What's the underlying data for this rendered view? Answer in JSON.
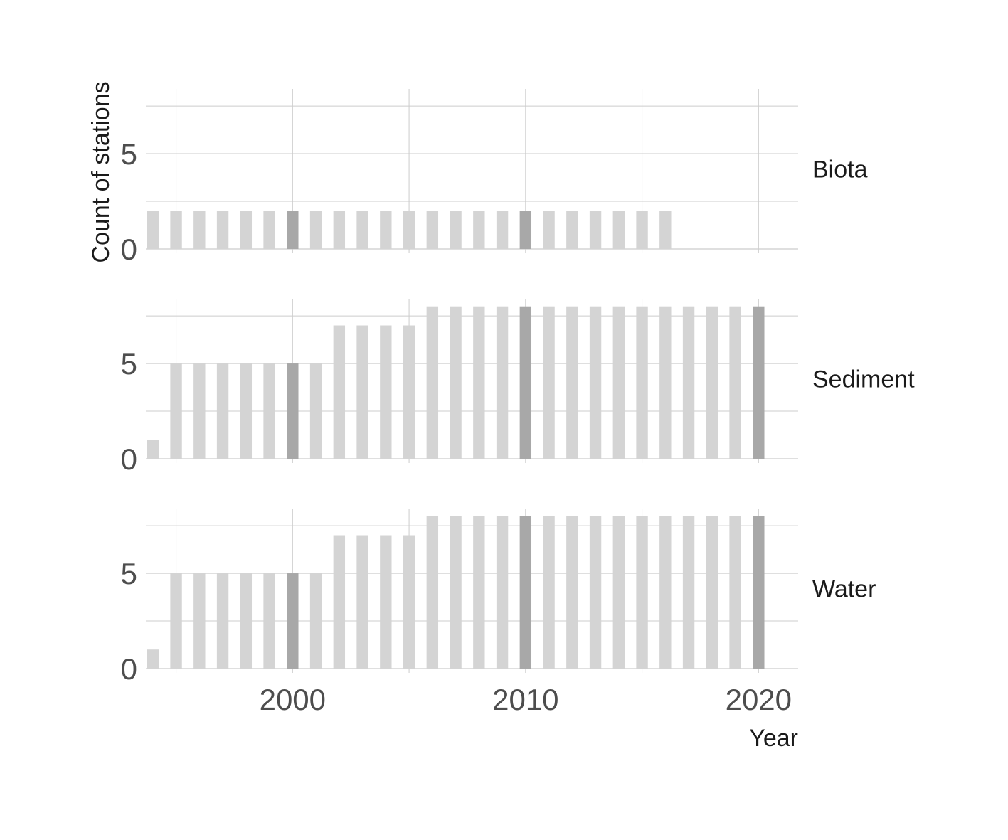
{
  "chart_data": {
    "type": "bar",
    "xlabel": "Year",
    "ylabel": "Count of stations",
    "x_ticks": [
      2000,
      2010,
      2020
    ],
    "y_ticks": [
      0,
      5
    ],
    "xlim": [
      1993.7,
      2021.7
    ],
    "ylim": [
      0,
      8.4
    ],
    "grid": true,
    "colors": {
      "bar": "#d4d4d4",
      "highlight_bar": "#a8a8a8",
      "grid": "#cccccc"
    },
    "highlight_years": [
      2000,
      2010,
      2020
    ],
    "panels": [
      {
        "name": "Biota",
        "x": [
          1994,
          1995,
          1996,
          1997,
          1998,
          1999,
          2000,
          2001,
          2002,
          2003,
          2004,
          2005,
          2006,
          2007,
          2008,
          2009,
          2010,
          2011,
          2012,
          2013,
          2014,
          2015,
          2016
        ],
        "values": [
          2,
          2,
          2,
          2,
          2,
          2,
          2,
          2,
          2,
          2,
          2,
          2,
          2,
          2,
          2,
          2,
          2,
          2,
          2,
          2,
          2,
          2,
          2
        ]
      },
      {
        "name": "Sediment",
        "x": [
          1994,
          1995,
          1996,
          1997,
          1998,
          1999,
          2000,
          2001,
          2002,
          2003,
          2004,
          2005,
          2006,
          2007,
          2008,
          2009,
          2010,
          2011,
          2012,
          2013,
          2014,
          2015,
          2016,
          2017,
          2018,
          2019,
          2020
        ],
        "values": [
          1,
          5,
          5,
          5,
          5,
          5,
          5,
          5,
          7,
          7,
          7,
          7,
          8,
          8,
          8,
          8,
          8,
          8,
          8,
          8,
          8,
          8,
          8,
          8,
          8,
          8,
          8
        ]
      },
      {
        "name": "Water",
        "x": [
          1994,
          1995,
          1996,
          1997,
          1998,
          1999,
          2000,
          2001,
          2002,
          2003,
          2004,
          2005,
          2006,
          2007,
          2008,
          2009,
          2010,
          2011,
          2012,
          2013,
          2014,
          2015,
          2016,
          2017,
          2018,
          2019,
          2020
        ],
        "values": [
          1,
          5,
          5,
          5,
          5,
          5,
          5,
          5,
          7,
          7,
          7,
          7,
          8,
          8,
          8,
          8,
          8,
          8,
          8,
          8,
          8,
          8,
          8,
          8,
          8,
          8,
          8
        ]
      }
    ]
  }
}
